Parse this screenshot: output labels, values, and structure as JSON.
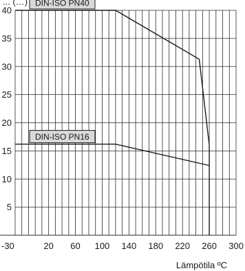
{
  "chart_data": {
    "type": "line",
    "title": "",
    "ylabel_fragment": "... (…)",
    "xlabel": "Lämpötila ºC",
    "x_ticks": [
      -30,
      20,
      60,
      100,
      140,
      180,
      220,
      260,
      300
    ],
    "y_ticks": [
      5,
      10,
      15,
      20,
      25,
      30,
      35,
      40
    ],
    "xlim": [
      -30,
      300
    ],
    "ylim": [
      0,
      40
    ],
    "grid": true,
    "line_color": "#1a1a1a",
    "label_fill": "#d9d9d9",
    "series": [
      {
        "name": "DIN-ISO PN40",
        "points": [
          [
            -30,
            40
          ],
          [
            120,
            40
          ],
          [
            245,
            31.3
          ],
          [
            260,
            16
          ],
          [
            260,
            0
          ]
        ]
      },
      {
        "name": "DIN-ISO PN16",
        "points": [
          [
            -30,
            16.2
          ],
          [
            120,
            16.2
          ],
          [
            260,
            12.4
          ]
        ]
      }
    ]
  }
}
